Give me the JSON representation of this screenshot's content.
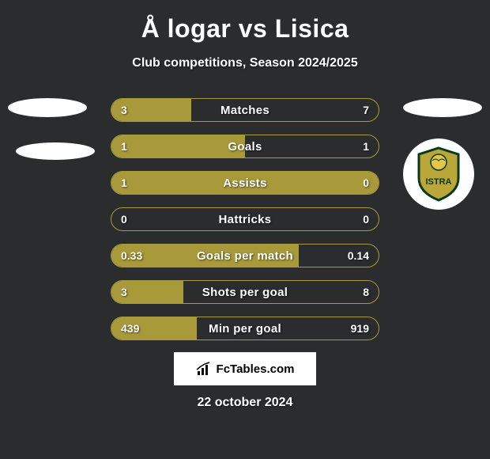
{
  "title": "Å logar vs Lisica",
  "subtitle": "Club competitions, Season 2024/2025",
  "date": "22 october 2024",
  "logo": "FcTables.com",
  "colors": {
    "background": "#2a2c2e",
    "bar_fill": "#a89a3a",
    "bar_border": "#a89a3a",
    "text": "#ffffff",
    "logo_bg": "#ffffff",
    "logo_text": "#000000"
  },
  "crest": {
    "shield_fill": "#b9a73a",
    "shield_stroke": "#0a3a1a",
    "circle_fill": "#e6c64a",
    "text": "ISTRA"
  },
  "stats": [
    {
      "label": "Matches",
      "left_value": "3",
      "right_value": "7",
      "left_pct": 30,
      "right_pct": 0
    },
    {
      "label": "Goals",
      "left_value": "1",
      "right_value": "1",
      "left_pct": 50,
      "right_pct": 0
    },
    {
      "label": "Assists",
      "left_value": "1",
      "right_value": "0",
      "left_pct": 100,
      "right_pct": 0
    },
    {
      "label": "Hattricks",
      "left_value": "0",
      "right_value": "0",
      "left_pct": 0,
      "right_pct": 0
    },
    {
      "label": "Goals per match",
      "left_value": "0.33",
      "right_value": "0.14",
      "left_pct": 70,
      "right_pct": 0
    },
    {
      "label": "Shots per goal",
      "left_value": "3",
      "right_value": "8",
      "left_pct": 27,
      "right_pct": 0
    },
    {
      "label": "Min per goal",
      "left_value": "439",
      "right_value": "919",
      "left_pct": 32,
      "right_pct": 0
    }
  ]
}
